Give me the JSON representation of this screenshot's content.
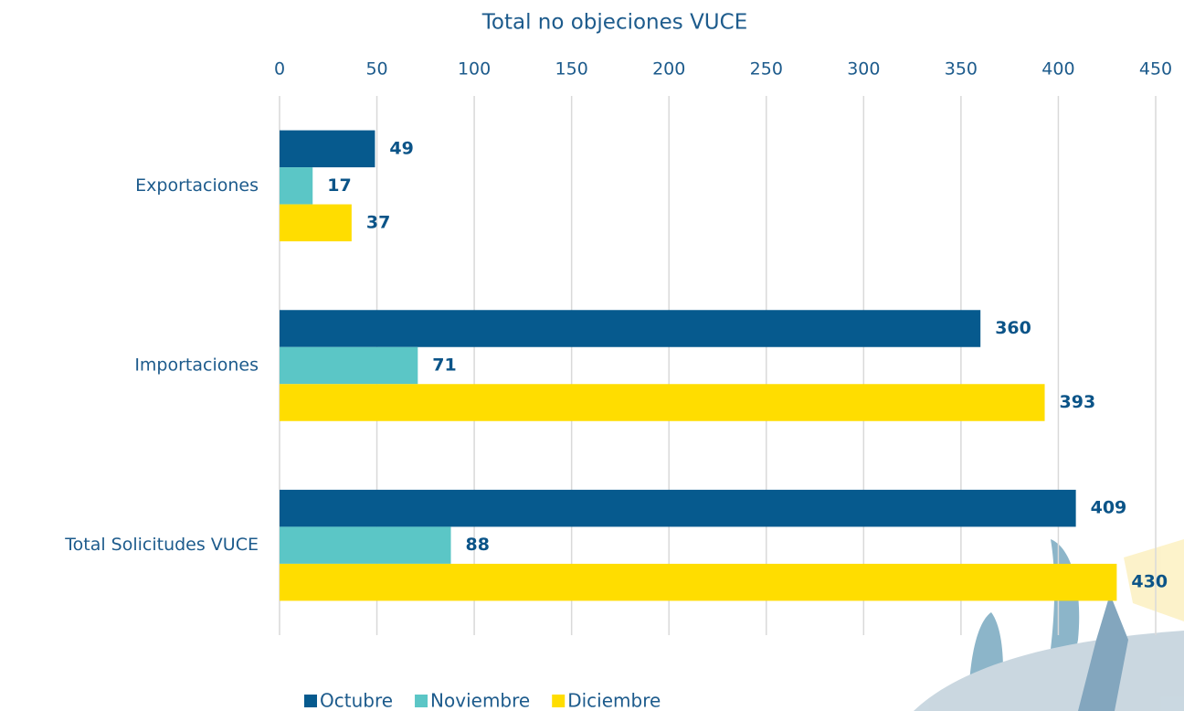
{
  "chart_data": {
    "type": "bar",
    "orientation": "horizontal",
    "title": "Total no objeciones VUCE",
    "categories": [
      "Exportaciones",
      "Importaciones",
      "Total Solicitudes VUCE"
    ],
    "series": [
      {
        "name": "Octubre",
        "color": "#065a8e",
        "values": [
          49,
          360,
          409
        ]
      },
      {
        "name": "Noviembre",
        "color": "#5bc6c6",
        "values": [
          17,
          71,
          88
        ]
      },
      {
        "name": "Diciembre",
        "color": "#ffdd00",
        "values": [
          37,
          393,
          430
        ]
      }
    ],
    "xlim": [
      0,
      450
    ],
    "xticks": [
      0,
      50,
      100,
      150,
      200,
      250,
      300,
      350,
      400,
      450
    ],
    "grid": true,
    "legend": "bottom"
  }
}
